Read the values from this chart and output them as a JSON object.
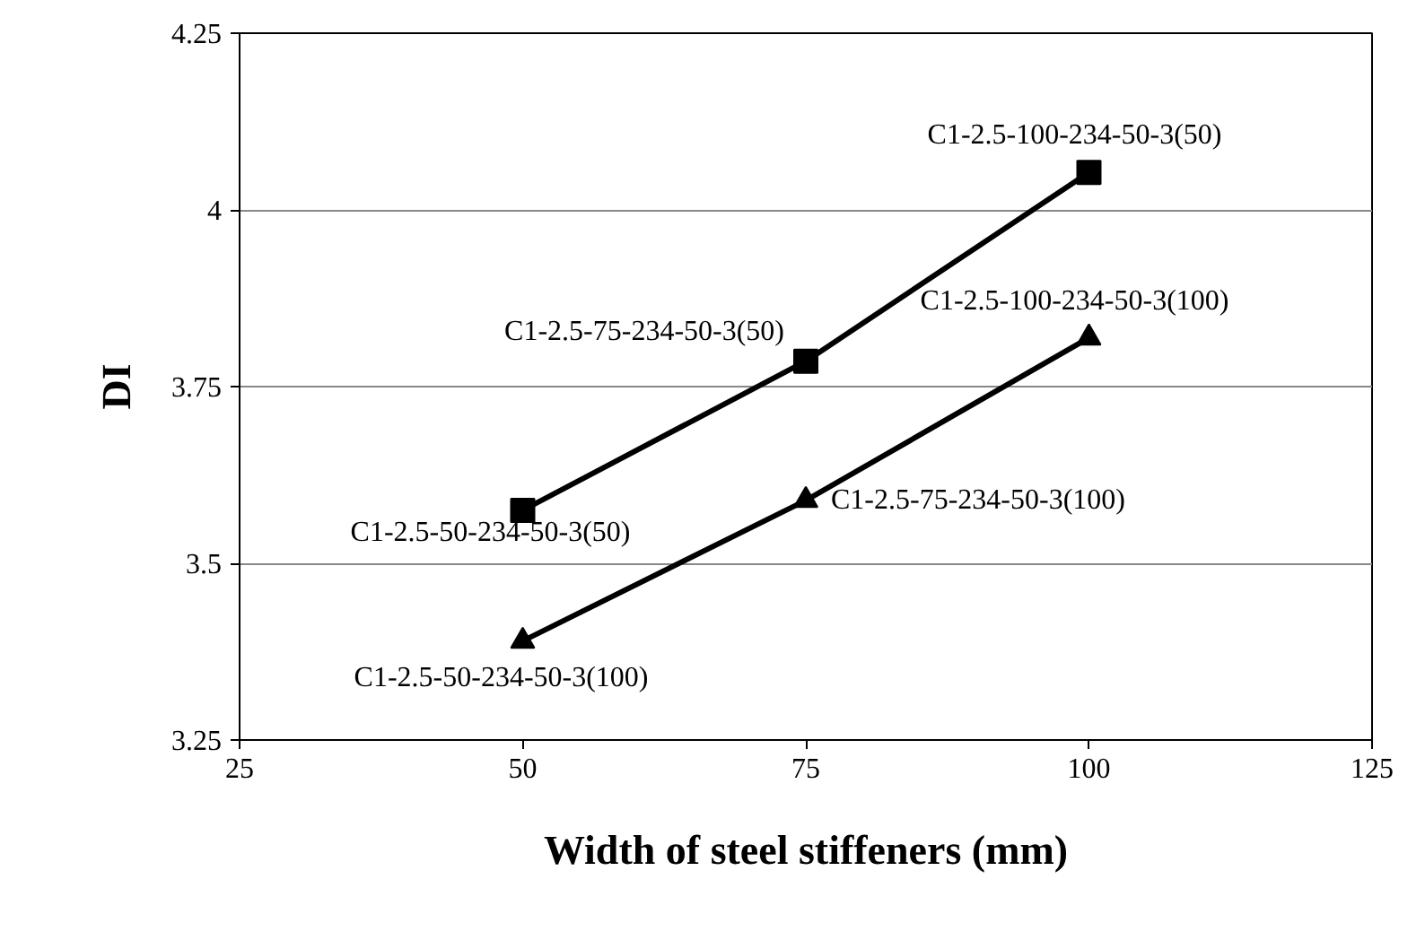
{
  "chart_data": {
    "type": "line",
    "xlabel": "Width of steel stiffeners (mm)",
    "ylabel": "DI",
    "x": [
      50,
      75,
      100
    ],
    "series": [
      {
        "color": "#000000",
        "marker": "square",
        "values": [
          3.575,
          3.786,
          4.053
        ]
      },
      {
        "color": "#000000",
        "marker": "triangle",
        "values": [
          3.39,
          3.589,
          3.819
        ]
      }
    ],
    "xlim": [
      25,
      125
    ],
    "xticks": [
      25,
      50,
      75,
      100,
      125
    ],
    "ylim": [
      3.25,
      4.25
    ],
    "yticks": [
      3.25,
      3.5,
      3.75,
      4,
      4.25
    ],
    "grid": "y",
    "line_style": "solid",
    "annotations": [
      {
        "text": "C1-2.5-50-234-50-3(50)",
        "x": 50,
        "y": 3.575
      },
      {
        "text": "C1-2.5-75-234-50-3(50)",
        "x": 75,
        "y": 3.786
      },
      {
        "text": "C1-2.5-100-234-50-3(50)",
        "x": 100,
        "y": 4.053
      },
      {
        "text": "C1-2.5-50-234-50-3(100)",
        "x": 50,
        "y": 3.39
      },
      {
        "text": "C1-2.5-75-234-50-3(100)",
        "x": 75,
        "y": 3.589
      },
      {
        "text": "C1-2.5-100-234-50-3(100)",
        "x": 100,
        "y": 3.819
      }
    ]
  }
}
